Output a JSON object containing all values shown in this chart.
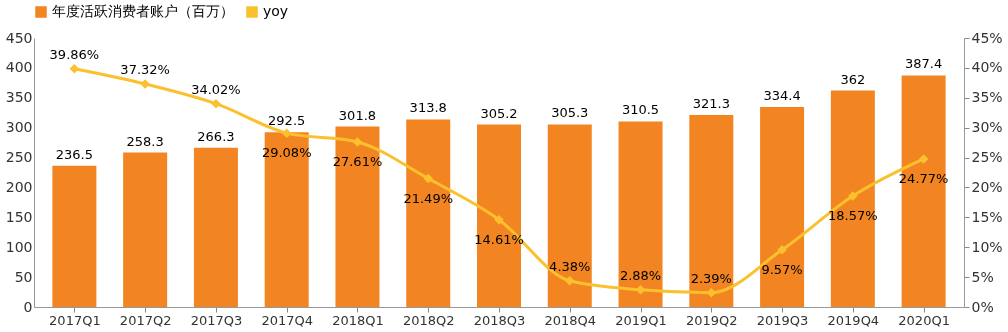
{
  "chart_data": {
    "type": "bar",
    "categories": [
      "2017Q1",
      "2017Q2",
      "2017Q3",
      "2017Q4",
      "2018Q1",
      "2018Q2",
      "2018Q3",
      "2018Q4",
      "2019Q1",
      "2019Q2",
      "2019Q3",
      "2019Q4",
      "2020Q1"
    ],
    "series": [
      {
        "name": "年度活跃消费者账户（百万）",
        "color": "#f28522",
        "values": [
          236.5,
          258.3,
          266.3,
          292.5,
          301.8,
          313.8,
          305.2,
          305.3,
          310.5,
          321.3,
          334.4,
          362,
          387.4
        ]
      },
      {
        "name": "yoy",
        "type": "line",
        "axis": "y2",
        "color": "#fbc02d",
        "marker": "diamond",
        "values": [
          39.86,
          37.32,
          34.02,
          29.08,
          27.61,
          21.49,
          14.61,
          4.38,
          2.88,
          2.39,
          9.57,
          18.57,
          24.77
        ],
        "value_labels": [
          "39.86%",
          "37.32%",
          "34.02%",
          "29.08%",
          "27.61%",
          "21.49%",
          "14.61%",
          "4.38%",
          "2.88%",
          "2.39%",
          "9.57%",
          "18.57%",
          "24.77%"
        ]
      }
    ],
    "data_labels": true,
    "ylim": [
      0,
      450
    ],
    "yticks": [
      0,
      50,
      100,
      150,
      200,
      250,
      300,
      350,
      400,
      450
    ],
    "y2lim": [
      0,
      45
    ],
    "y2ticks": [
      {
        "value": 0,
        "label": "0%"
      },
      {
        "value": 5,
        "label": "5%"
      },
      {
        "value": 10,
        "label": "10%"
      },
      {
        "value": 15,
        "label": "15%"
      },
      {
        "value": 20,
        "label": "20%"
      },
      {
        "value": 25,
        "label": "25%"
      },
      {
        "value": 30,
        "label": "30%"
      },
      {
        "value": 35,
        "label": "35%"
      },
      {
        "value": 40,
        "label": "40%"
      },
      {
        "value": 45,
        "label": "45%"
      }
    ],
    "legend": "top",
    "grid": false
  }
}
